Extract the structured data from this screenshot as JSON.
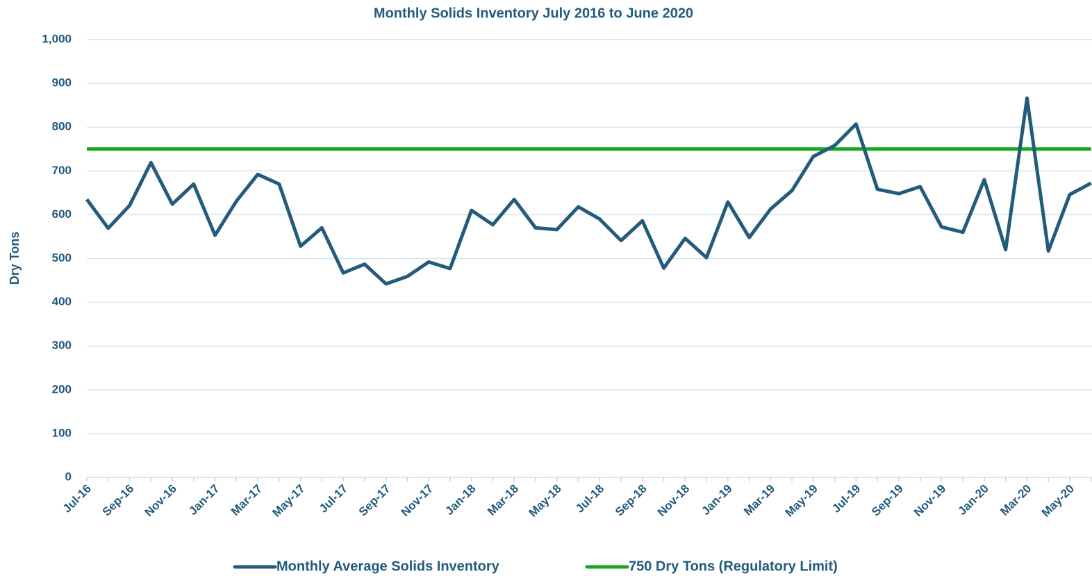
{
  "chart_data": {
    "type": "line",
    "title": "Monthly Solids Inventory July 2016 to June 2020",
    "y_label": "Dry Tons",
    "categories": [
      "Jul-16",
      null,
      "Sep-16",
      null,
      "Nov-16",
      null,
      "Jan-17",
      null,
      "Mar-17",
      null,
      "May-17",
      null,
      "Jul-17",
      null,
      "Sep-17",
      null,
      "Nov-17",
      null,
      "Jan-18",
      null,
      "Mar-18",
      null,
      "May-18",
      null,
      "Jul-18",
      null,
      "Sep-18",
      null,
      "Nov-18",
      null,
      "Jan-19",
      null,
      "Mar-19",
      null,
      "May-19",
      null,
      "Jul-19",
      null,
      "Sep-19",
      null,
      "Nov-19",
      null,
      "Jan-20",
      null,
      "Mar-20",
      null,
      "May-20",
      null
    ],
    "series": [
      {
        "name": "Monthly Average Solids Inventory",
        "color": "#245b7c",
        "values": [
          635,
          569,
          621,
          719,
          624,
          670,
          553,
          631,
          692,
          670,
          528,
          570,
          467,
          487,
          442,
          459,
          492,
          477,
          610,
          577,
          635,
          570,
          566,
          618,
          590,
          541,
          586,
          478,
          546,
          502,
          629,
          548,
          613,
          655,
          733,
          758,
          807,
          658,
          648,
          664,
          572,
          560,
          680,
          520,
          866,
          517,
          646,
          672
        ]
      },
      {
        "name": "750 Dry Tons (Regulatory Limit)",
        "color": "#14a81e",
        "values": [
          750,
          750,
          750,
          750,
          750,
          750,
          750,
          750,
          750,
          750,
          750,
          750,
          750,
          750,
          750,
          750,
          750,
          750,
          750,
          750,
          750,
          750,
          750,
          750,
          750,
          750,
          750,
          750,
          750,
          750,
          750,
          750,
          750,
          750,
          750,
          750,
          750,
          750,
          750,
          750,
          750,
          750,
          750,
          750,
          750,
          750,
          750,
          750
        ]
      }
    ],
    "ylim": [
      0,
      1000
    ],
    "yticks": [
      0,
      100,
      200,
      300,
      400,
      500,
      600,
      700,
      800,
      900,
      {
        "value": 1000,
        "label": "1,000"
      }
    ],
    "grid": true,
    "legend": "bottom"
  }
}
